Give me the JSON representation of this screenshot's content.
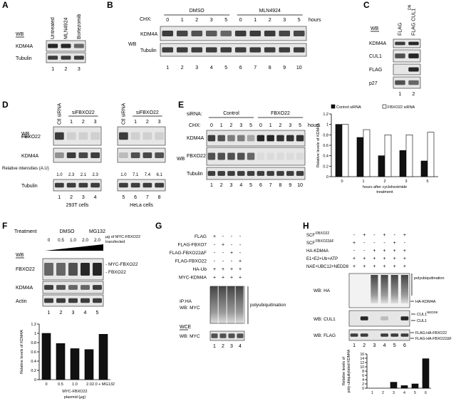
{
  "A": {
    "letter": "A",
    "wb": "WB",
    "columns": [
      "Untreated",
      "MLN4924",
      "Bortezomib"
    ],
    "rows": [
      "KDM4A",
      "Tubulin"
    ],
    "lanes": [
      1,
      2,
      3
    ]
  },
  "B": {
    "letter": "B",
    "chx": "CHX:",
    "groups": [
      "DMSO",
      "MLN4924"
    ],
    "times": [
      0,
      1,
      2,
      3,
      5,
      0,
      1,
      2,
      3,
      5
    ],
    "unit": "hours",
    "wb": "WB",
    "rows": [
      "KDM4A",
      "Tubulin"
    ],
    "lanes": [
      1,
      2,
      3,
      4,
      5,
      6,
      7,
      8,
      9,
      10
    ]
  },
  "C": {
    "letter": "C",
    "columns": [
      "FLAG",
      "FLAG CUL1"
    ],
    "superscript": "DN",
    "wb": "WB",
    "rows": [
      "KDM4A",
      "CUL1",
      "FLAG",
      "p27"
    ],
    "lanes": [
      1,
      2
    ]
  },
  "D": {
    "letter": "D",
    "wb": "WB",
    "groups": [
      {
        "control": "Ctl siRNA",
        "treatment": "siFBXO22",
        "subs": [
          1,
          2,
          3
        ],
        "cells": "293T cells"
      },
      {
        "control": "Ctl siRNA",
        "treatment": "siFBXO22",
        "subs": [
          1,
          2,
          3
        ],
        "cells": "HeLa cells"
      }
    ],
    "rows": [
      "FBXO22",
      "KDM4A",
      "Tubulin"
    ],
    "intensity_label": "Relative intensities (A.U)",
    "intensities": [
      "1.0",
      "2.3",
      "2.1",
      "2.3",
      "1.0",
      "7.1",
      "7.4",
      "6.1"
    ],
    "lanes": [
      1,
      2,
      3,
      4,
      5,
      6,
      7,
      8
    ]
  },
  "E": {
    "letter": "E",
    "sirna": "siRNA:",
    "groups": [
      "Control",
      "FBXO22"
    ],
    "chx": "CHX:",
    "times": [
      0,
      1,
      2,
      3,
      5,
      0,
      1,
      2,
      3,
      5
    ],
    "unit": "hours",
    "wb": "WB",
    "rows": [
      "KDM4A",
      "FBXO22",
      "Tubulin"
    ],
    "lanes": [
      1,
      2,
      3,
      4,
      5,
      6,
      7,
      8,
      9,
      10
    ],
    "chart": {
      "type": "bar",
      "y_label": "Relative levels of KDM4A",
      "x_label": [
        "hours after cycloheximide",
        "treatment"
      ],
      "categories": [
        0,
        1,
        2,
        3,
        5
      ],
      "ylim": [
        0,
        1.2
      ],
      "yticks": [
        0,
        0.2,
        0.4,
        0.6,
        0.8,
        1,
        1.2
      ],
      "series": [
        {
          "name": "Control siRNA",
          "color": "#111111",
          "values": [
            1,
            0.75,
            0.4,
            0.5,
            0.3
          ]
        },
        {
          "name": "FBXO22 siRNA",
          "color": "#ffffff",
          "values": [
            1,
            0.9,
            0.8,
            0.8,
            0.85
          ]
        }
      ]
    }
  },
  "F": {
    "letter": "F",
    "treatment": "Treatment",
    "groups": [
      "DMSO",
      "MG132"
    ],
    "doses": [
      "0",
      "0.5",
      "1.0",
      "2.0",
      "2.0"
    ],
    "dose_label": [
      "μg of MYC-FBXO22",
      "transfected"
    ],
    "wb": "WB",
    "rows": [
      "FBXO22",
      "KDM4A",
      "Actin"
    ],
    "bands": [
      "- MYC-FBXO22",
      "- FBXO22"
    ],
    "lanes": [
      1,
      2,
      3,
      4,
      5
    ],
    "chart": {
      "type": "bar",
      "y_label": "Relative levels of KDM4A",
      "x_label": [
        "MYC-FBXO22",
        "plasmid (μg)"
      ],
      "categories": [
        "0",
        "0.5",
        "1.0",
        "2.0",
        "2.0 + MG132"
      ],
      "values": [
        1,
        0.78,
        0.67,
        0.65,
        0.98
      ],
      "color": "#111111",
      "ylim": [
        0,
        1.2
      ],
      "yticks": [
        0,
        0.2,
        0.4,
        0.6,
        0.8,
        1,
        1.2
      ]
    }
  },
  "G": {
    "letter": "G",
    "rows": [
      {
        "label": "FLAG",
        "signs": [
          "+",
          "-",
          "-",
          "-"
        ]
      },
      {
        "label": "FLAG-FBXO7",
        "signs": [
          "-",
          "+",
          "-",
          "-"
        ]
      },
      {
        "label": "FLAG-FBXO22ΔF",
        "signs": [
          "-",
          "-",
          "+",
          "-"
        ]
      },
      {
        "label": "FLAG-FBXO22",
        "signs": [
          "-",
          "-",
          "-",
          "+"
        ]
      },
      {
        "label": "HA-Ub",
        "signs": [
          "+",
          "+",
          "+",
          "+"
        ]
      },
      {
        "label": "MYC-KDM4A",
        "signs": [
          "+",
          "+",
          "+",
          "+"
        ]
      }
    ],
    "ip": "IP:HA",
    "wb_ip": "WB: MYC",
    "poly": "polyubiquitination",
    "wce": "WCE",
    "wb_wce": "WB: MYC",
    "lanes": [
      1,
      2,
      3,
      4
    ]
  },
  "H": {
    "letter": "H",
    "rows": [
      {
        "label": "SCF",
        "superscript": "FBXO22",
        "signs": [
          "-",
          "+",
          "-",
          "+",
          "-",
          "+"
        ]
      },
      {
        "label": "SCF",
        "superscript": "FBXO22ΔF",
        "signs": [
          "+",
          "-",
          "-",
          "-",
          "+",
          "-"
        ]
      },
      {
        "label": "HA-KDM4A",
        "signs": [
          "-",
          "-",
          "+",
          "+",
          "+",
          "+"
        ]
      },
      {
        "label": "E1+E2+Ub+ATP",
        "signs": [
          "+",
          "+",
          "+",
          "+",
          "+",
          "+"
        ]
      },
      {
        "label": "NAE+UBC12+NEDD8",
        "signs": [
          "+",
          "+",
          "+",
          "+",
          "+",
          "+"
        ]
      }
    ],
    "wb_ha": "WB: HA",
    "poly": "polyubiquitination",
    "ha_kdm4a": "HA-KDM4A",
    "wb_cul1": "WB: CUL1",
    "cul1_bands": [
      {
        "label": "CUL1",
        "superscript": "NEDD8"
      },
      {
        "label": "CUL1"
      }
    ],
    "wb_flag": "WB: FLAG",
    "flag_bands": [
      "FLAG-HA-FBXO22",
      "FLAG-HA-FBXO22ΔF"
    ],
    "lanes": [
      1,
      2,
      3,
      4,
      5,
      6
    ],
    "chart": {
      "type": "bar",
      "y_label": [
        "Relative levels of",
        "poly-ubiquitylated KDM4A"
      ],
      "categories": [
        1,
        2,
        3,
        4,
        5,
        6
      ],
      "values": [
        0,
        0,
        2.8,
        1.2,
        2,
        13.8
      ],
      "color": "#111111",
      "ylim": [
        0,
        16
      ],
      "yticks": [
        0,
        2,
        4,
        6,
        8,
        10,
        12,
        14,
        16
      ]
    }
  }
}
